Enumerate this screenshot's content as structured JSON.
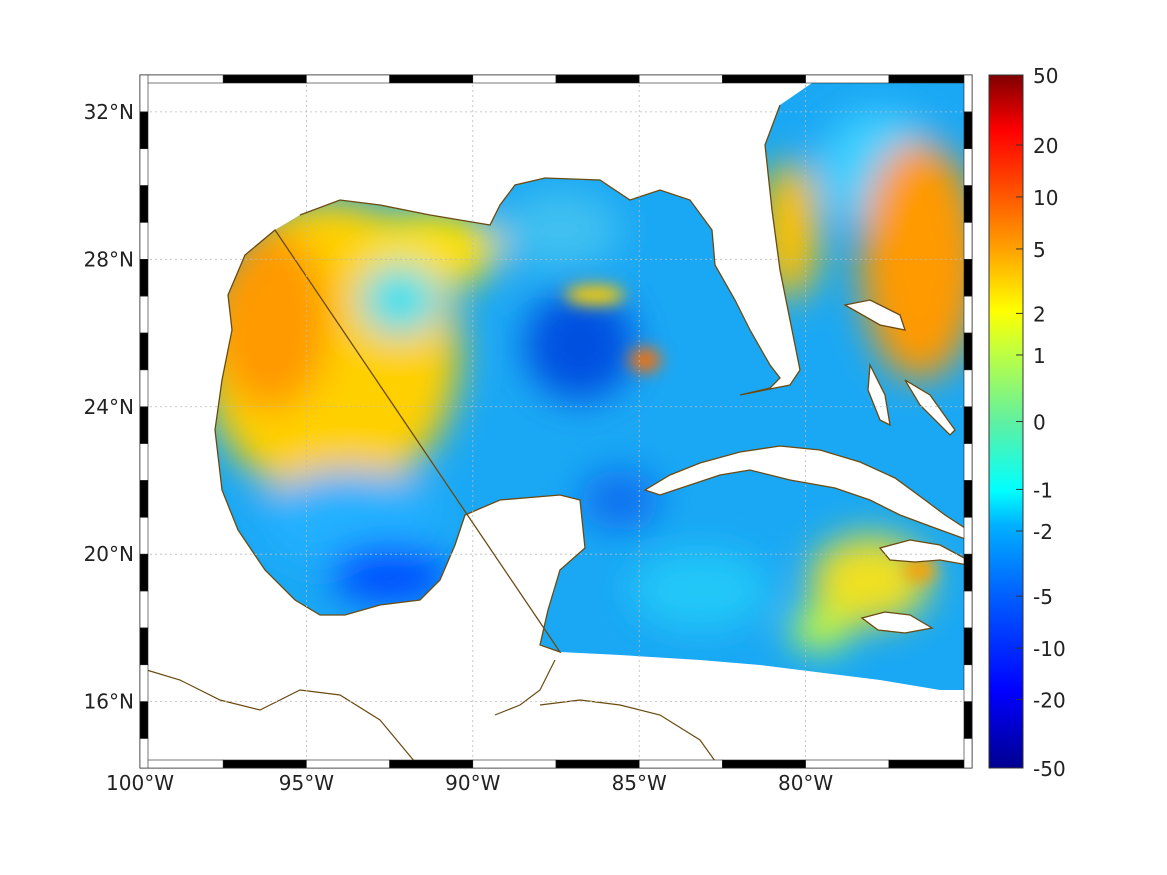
{
  "map": {
    "lat_labels": [
      "32°N",
      "28°N",
      "24°N",
      "20°N",
      "16°N"
    ],
    "lat_values": [
      32,
      28,
      24,
      20,
      16
    ],
    "lon_labels": [
      "100°W",
      "95°W",
      "90°W",
      "85°W",
      "80°W"
    ],
    "lon_values": [
      -100,
      -95,
      -90,
      -85,
      -80
    ],
    "extent": {
      "lon": [
        -100,
        -75
      ],
      "lat": [
        14.2,
        33
      ]
    },
    "coast_color": "#6b4a10"
  },
  "colorbar": {
    "labels": [
      "50",
      "20",
      "10",
      "5",
      "2",
      "1",
      "0",
      "-1",
      "-2",
      "-5",
      "-10",
      "-20",
      "-50"
    ],
    "colormap": "jet"
  }
}
